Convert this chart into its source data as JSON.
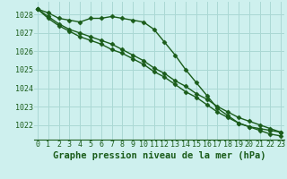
{
  "title": "Graphe pression niveau de la mer (hPa)",
  "bg_color": "#cef0ee",
  "grid_color": "#aad8d4",
  "line_color": "#1a5c1a",
  "x_hours": [
    0,
    1,
    2,
    3,
    4,
    5,
    6,
    7,
    8,
    9,
    10,
    11,
    12,
    13,
    14,
    15,
    16,
    17,
    18,
    19,
    20,
    21,
    22,
    23
  ],
  "series": [
    [
      1028.3,
      1028.1,
      1027.8,
      1027.7,
      1027.6,
      1027.8,
      1027.8,
      1027.9,
      1027.8,
      1027.7,
      1027.6,
      1027.2,
      1026.5,
      1025.8,
      1025.0,
      1024.3,
      1023.6,
      1022.9,
      1022.5,
      1022.1,
      1021.9,
      1021.8,
      1021.7,
      1021.6
    ],
    [
      1028.3,
      1027.9,
      1027.5,
      1027.2,
      1027.0,
      1026.8,
      1026.6,
      1026.4,
      1026.1,
      1025.8,
      1025.5,
      1025.1,
      1024.8,
      1024.4,
      1024.1,
      1023.7,
      1023.4,
      1023.0,
      1022.7,
      1022.4,
      1022.2,
      1022.0,
      1021.8,
      1021.6
    ],
    [
      1028.3,
      1027.8,
      1027.4,
      1027.1,
      1026.8,
      1026.6,
      1026.4,
      1026.1,
      1025.9,
      1025.6,
      1025.3,
      1024.9,
      1024.6,
      1024.2,
      1023.8,
      1023.5,
      1023.1,
      1022.7,
      1022.4,
      1022.1,
      1021.9,
      1021.7,
      1021.5,
      1021.4
    ]
  ],
  "ylim": [
    1021.2,
    1028.7
  ],
  "yticks": [
    1022,
    1023,
    1024,
    1025,
    1026,
    1027,
    1028
  ],
  "markersize": 2.5,
  "linewidth": 1.0,
  "title_fontsize": 7.5,
  "tick_fontsize": 6.0,
  "title_color": "#1a5c1a",
  "tick_color": "#1a5c1a",
  "spine_color": "#1a5c1a"
}
